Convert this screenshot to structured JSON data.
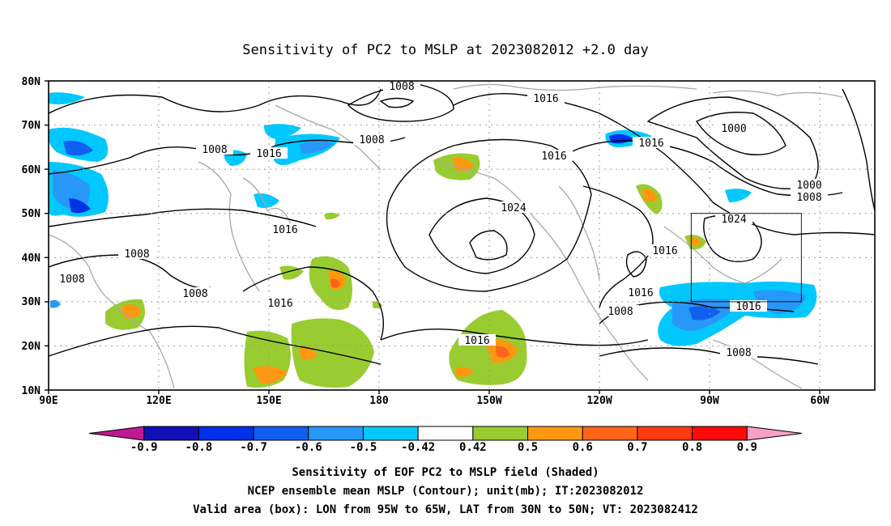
{
  "title": "Sensitivity of PC2 to MSLP at 2023082012 +2.0 day",
  "lat_labels": [
    "80N",
    "70N",
    "60N",
    "50N",
    "40N",
    "30N",
    "20N",
    "10N"
  ],
  "lon_labels": [
    "90E",
    "120E",
    "150E",
    "180",
    "150W",
    "120W",
    "90W",
    "60W"
  ],
  "colorbar": {
    "colors": [
      "#c01890",
      "#1010b8",
      "#0030e8",
      "#1060f0",
      "#2898f8",
      "#00c8ff",
      "#ffffff",
      "#98cc30",
      "#ff9810",
      "#ff6418",
      "#ff3a10",
      "#ff0a0a",
      "#f8a0c8"
    ],
    "labels": [
      "-0.9",
      "-0.8",
      "-0.7",
      "-0.6",
      "-0.5",
      "-0.42",
      "0.42",
      "0.5",
      "0.6",
      "0.7",
      "0.8",
      "0.9"
    ]
  },
  "contour_labels": [
    "1008",
    "1016",
    "1000",
    "1024"
  ],
  "caption": {
    "line1": "Sensitivity of EOF PC2 to MSLP field (Shaded)",
    "line2": "NCEP ensemble mean MSLP (Contour); unit(mb); IT:2023082012",
    "line3": "Valid area (box): LON from 95W to 65W, LAT from 30N to 50N; VT: 2023082412"
  },
  "valid_area": {
    "lon_west": -95,
    "lon_east": -65,
    "lat_south": 30,
    "lat_north": 50
  }
}
